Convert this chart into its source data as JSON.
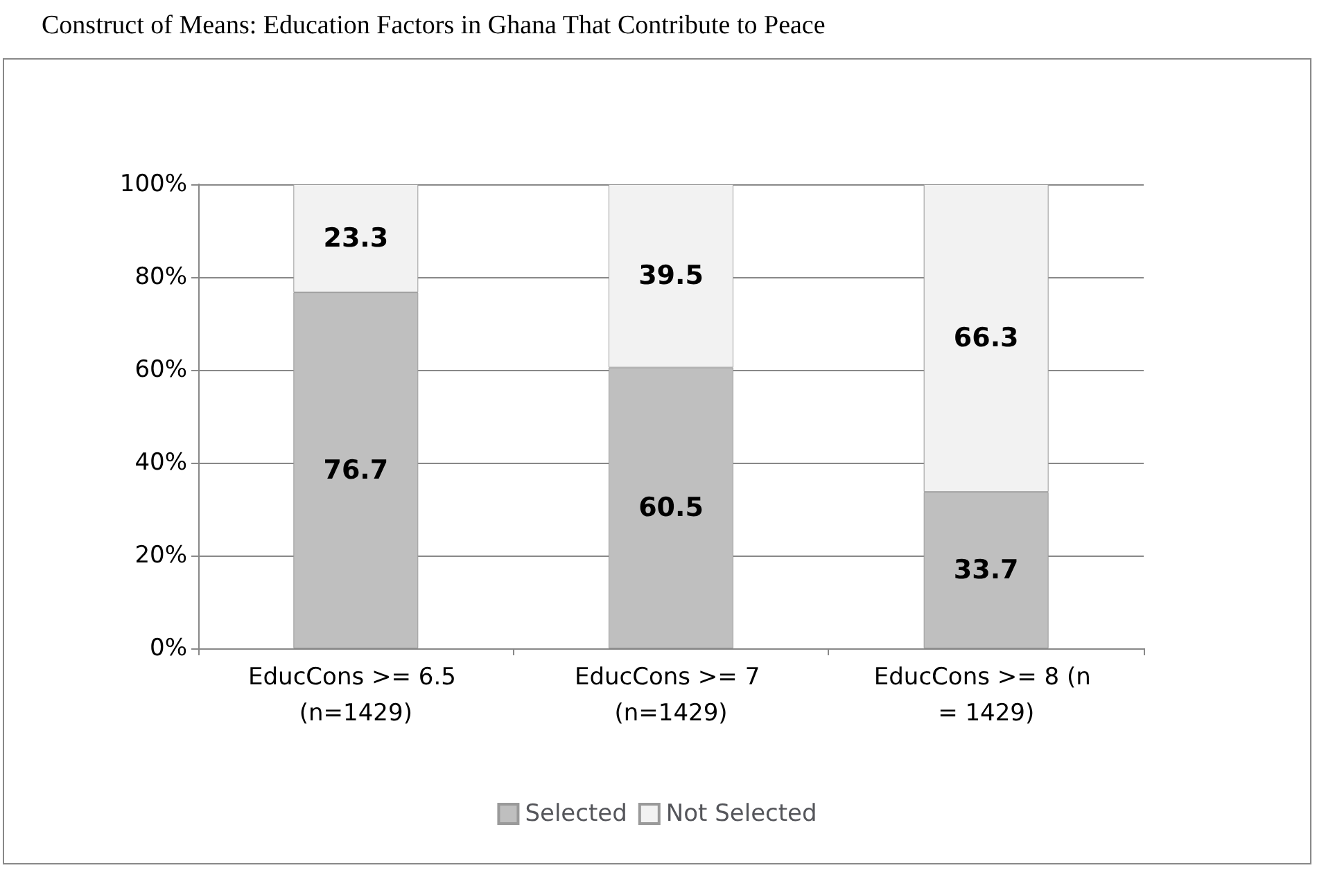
{
  "chart_data": {
    "type": "bar",
    "title": "Construct of Means: Education Factors in Ghana That Contribute to Peace",
    "categories": [
      "EducCons >= 6.5 (n=1429)",
      "EducCons >= 7 (n=1429)",
      "EducCons >= 8 (n = 1429)"
    ],
    "series": [
      {
        "name": "Selected",
        "color": "#bfbfbf",
        "values": [
          76.7,
          60.5,
          33.7
        ]
      },
      {
        "name": "Not Selected",
        "color": "#f2f2f2",
        "values": [
          23.3,
          39.5,
          66.3
        ]
      }
    ],
    "stacked": true,
    "ylim": [
      0,
      100
    ],
    "yticks": [
      {
        "value": 0,
        "label": "0%"
      },
      {
        "value": 20,
        "label": "20%"
      },
      {
        "value": 40,
        "label": "40%"
      },
      {
        "value": 60,
        "label": "60%"
      },
      {
        "value": 80,
        "label": "80%"
      },
      {
        "value": 100,
        "label": "100%"
      }
    ],
    "grid": "y",
    "legend": "bottom",
    "data_labels": true
  }
}
